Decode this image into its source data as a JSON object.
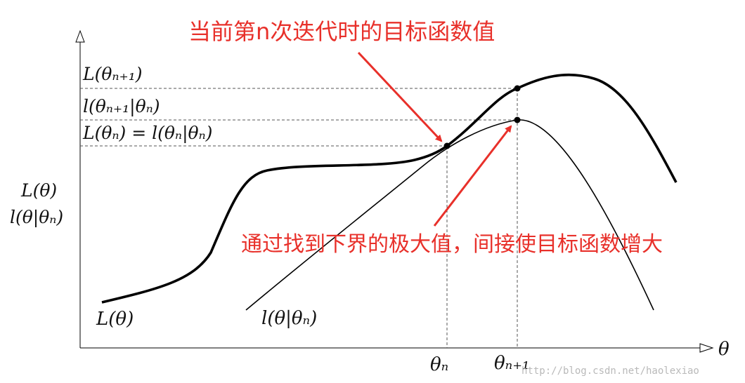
{
  "annotations": {
    "top": "当前第n次迭代时的目标函数值",
    "middle": "通过找到下界的极大值，间接使目标函数增大"
  },
  "labels": {
    "y_axis_line1": "L(θ)",
    "y_axis_line2": "l(θ|θₙ)",
    "x_axis": "θ",
    "L_next": "L(θₙ₊₁)",
    "l_next": "l(θₙ₊₁|θₙ)",
    "L_equal": "L(θₙ) = l(θₙ|θₙ)",
    "curve_L": "L(θ)",
    "curve_l": "l(θ|θₙ)",
    "theta_n": "θₙ",
    "theta_n1": "θₙ₊₁"
  },
  "watermark": "http://blog.csdn.net/haolexiao",
  "colors": {
    "curve": "#000000",
    "guide": "#555555",
    "annotation": "#e8302a"
  }
}
